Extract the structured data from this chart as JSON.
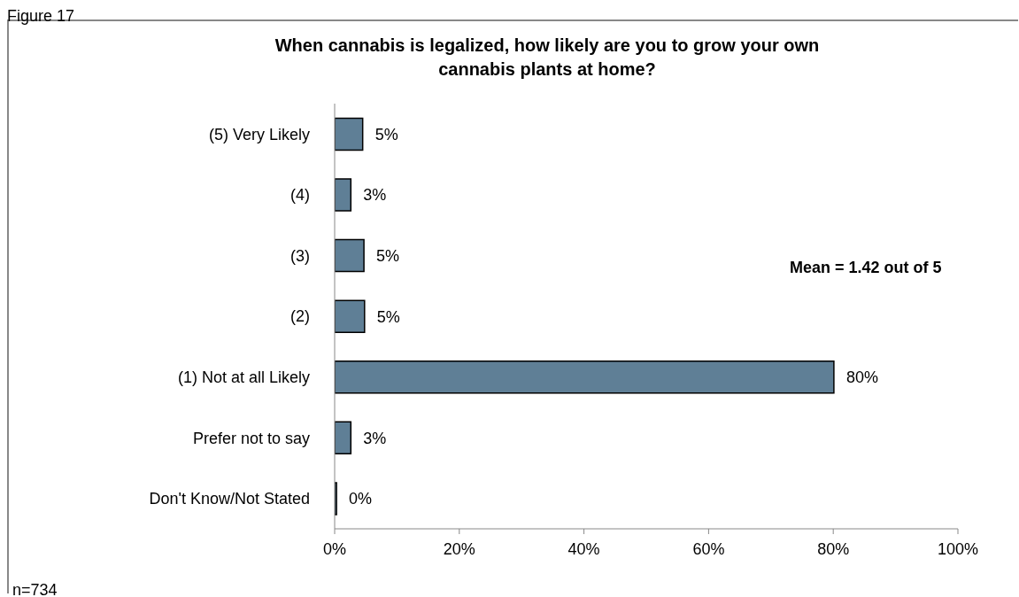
{
  "chart_data": {
    "type": "bar",
    "orientation": "horizontal",
    "title": "When cannabis is legalized, how likely are you to grow your own cannabis plants at home?",
    "categories": [
      "(5) Very Likely",
      "(4)",
      "(3)",
      "(2)",
      "(1) Not at all Likely",
      "Prefer not to say",
      "Don't Know/Not Stated"
    ],
    "values": [
      4.5,
      2.6,
      4.7,
      4.8,
      80.1,
      2.6,
      0.3
    ],
    "value_labels": [
      "5%",
      "3%",
      "5%",
      "5%",
      "80%",
      "3%",
      "0%"
    ],
    "color": "#5f7f96",
    "xlim": [
      0,
      100
    ],
    "xticks": [
      {
        "value": 0,
        "label": "0%"
      },
      {
        "value": 20,
        "label": "20%"
      },
      {
        "value": 40,
        "label": "40%"
      },
      {
        "value": 60,
        "label": "60%"
      },
      {
        "value": 80,
        "label": "80%"
      },
      {
        "value": 100,
        "label": "100%"
      }
    ],
    "annotations": [
      "Figure 17",
      "Mean = 1.42 out of 5",
      "n=734"
    ]
  }
}
